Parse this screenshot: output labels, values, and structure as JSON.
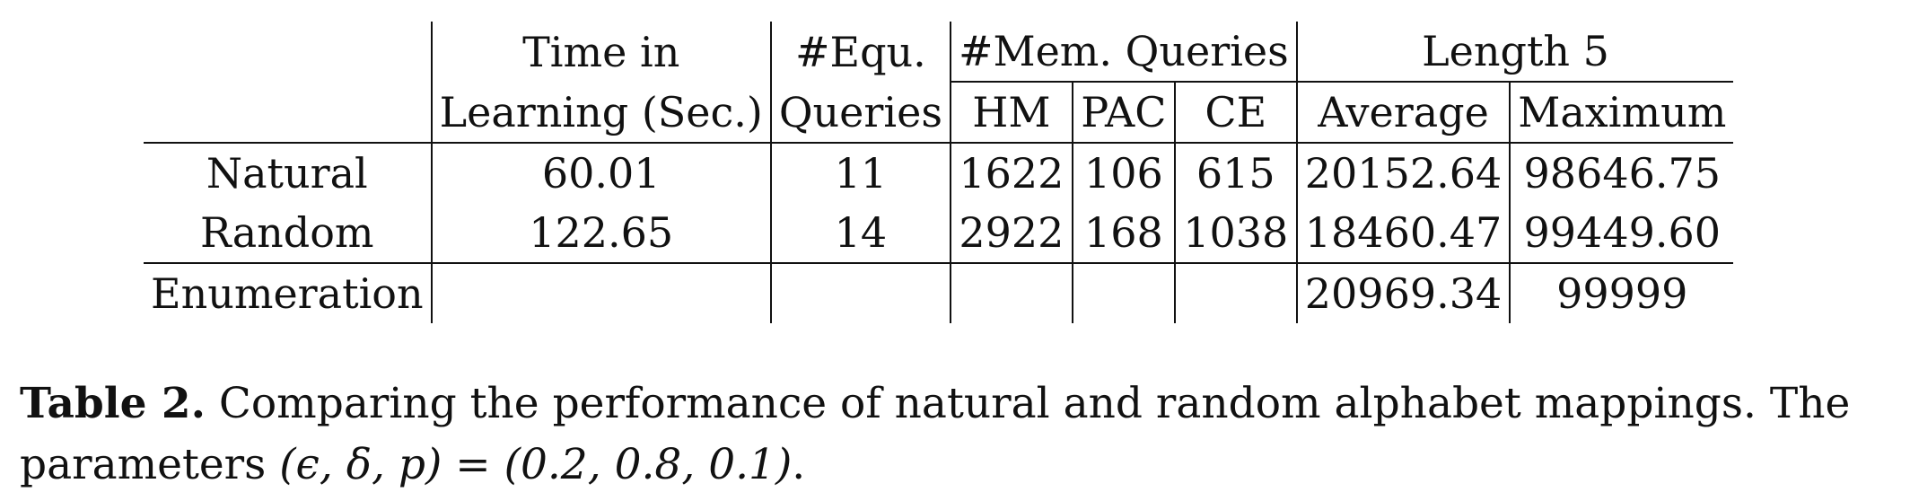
{
  "table": {
    "header": {
      "time_line1": "Time in",
      "time_line2": "Learning (Sec.)",
      "equ_line1": "#Equ.",
      "equ_line2": "Queries",
      "mem_group": "#Mem. Queries",
      "mem_sub": [
        "HM",
        "PAC",
        "CE"
      ],
      "length_group": "Length 5",
      "length_sub": [
        "Average",
        "Maximum"
      ]
    },
    "rows": [
      {
        "label": "Natural",
        "time": "60.01",
        "equ": "11",
        "hm": "1622",
        "pac": "106",
        "ce": "615",
        "average": "20152.64",
        "maximum": "98646.75"
      },
      {
        "label": "Random",
        "time": "122.65",
        "equ": "14",
        "hm": "2922",
        "pac": "168",
        "ce": "1038",
        "average": "18460.47",
        "maximum": "99449.60"
      },
      {
        "label": "Enumeration",
        "time": "",
        "equ": "",
        "hm": "",
        "pac": "",
        "ce": "",
        "average": "20969.34",
        "maximum": "99999"
      }
    ]
  },
  "caption": {
    "label": "Table 2.",
    "text": " Comparing the performance of natural and random alphabet mappings. The parameters ",
    "math": "(ϵ, δ, p) = (0.2, 0.8, 0.1)",
    "end": "."
  }
}
